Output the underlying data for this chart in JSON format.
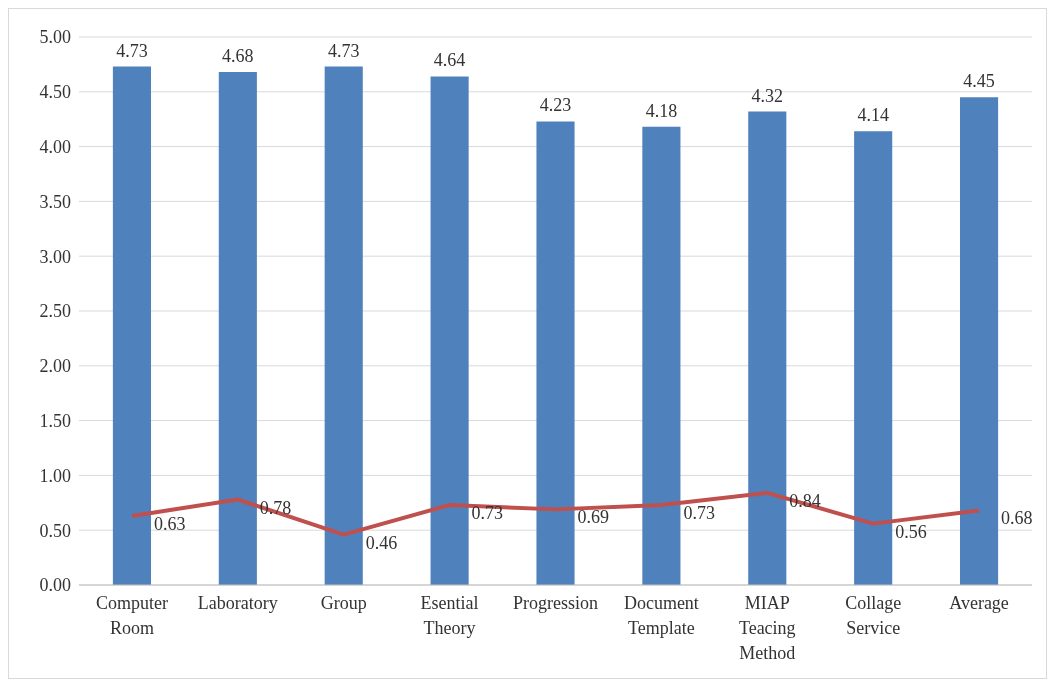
{
  "chart_data": {
    "type": "bar",
    "categories": [
      "Computer Room",
      "Laboratory",
      "Group",
      "Esential Theory",
      "Progression",
      "Document Template",
      "MIAP Teacing Method",
      "Collage Service",
      "Average"
    ],
    "series": [
      {
        "color": "#4f81bd",
        "values": [
          4.73,
          4.68,
          4.73,
          4.64,
          4.23,
          4.18,
          4.32,
          4.14,
          4.45
        ]
      },
      {
        "type": "line",
        "color": "#c0504d",
        "values": [
          0.63,
          0.78,
          0.46,
          0.73,
          0.69,
          0.73,
          0.84,
          0.56,
          0.68
        ]
      }
    ],
    "ylim": [
      0,
      5
    ],
    "yticks": [
      {
        "value": 0,
        "label": "0.00"
      },
      {
        "value": 0.5,
        "label": "0.50"
      },
      {
        "value": 1,
        "label": "1.00"
      },
      {
        "value": 1.5,
        "label": "1.50"
      },
      {
        "value": 2,
        "label": "2.00"
      },
      {
        "value": 2.5,
        "label": "2.50"
      },
      {
        "value": 3,
        "label": "3.00"
      },
      {
        "value": 3.5,
        "label": "3.50"
      },
      {
        "value": 4,
        "label": "4.00"
      },
      {
        "value": 4.5,
        "label": "4.50"
      },
      {
        "value": 5,
        "label": "5.00"
      }
    ],
    "grid": "y",
    "data_labels": true
  }
}
